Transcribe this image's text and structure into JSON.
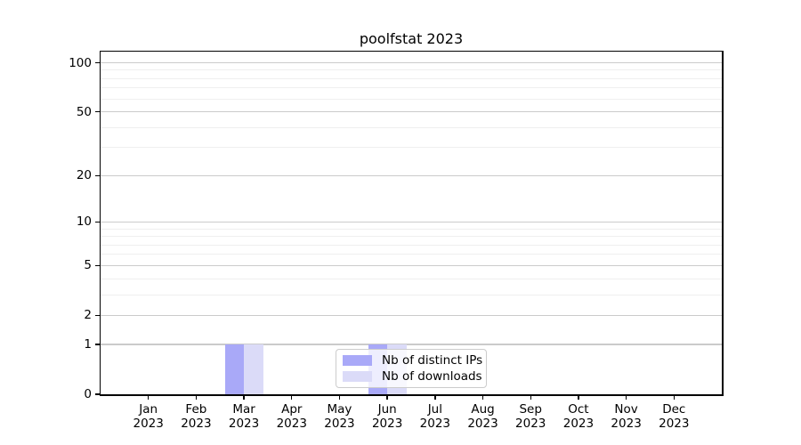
{
  "title": "poolfstat 2023",
  "chart_data": {
    "type": "bar",
    "title": "poolfstat 2023",
    "categories": [
      "Jan 2023",
      "Feb 2023",
      "Mar 2023",
      "Apr 2023",
      "May 2023",
      "Jun 2023",
      "Jul 2023",
      "Aug 2023",
      "Sep 2023",
      "Oct 2023",
      "Nov 2023",
      "Dec 2023"
    ],
    "series": [
      {
        "name": "Nb of distinct IPs",
        "color": "#a9a9f8",
        "values": [
          0,
          0,
          1,
          0,
          0,
          1,
          0,
          0,
          0,
          0,
          0,
          0
        ]
      },
      {
        "name": "Nb of downloads",
        "color": "#dbdbf8",
        "values": [
          0,
          0,
          1,
          0,
          0,
          1,
          0,
          0,
          0,
          0,
          0,
          0
        ]
      }
    ],
    "yscale": "log1p",
    "ylim": [
      0,
      117
    ],
    "y_major_ticks": [
      0,
      1,
      2,
      5,
      10,
      20,
      50,
      100
    ],
    "y_minor_ticks": [
      3,
      4,
      6,
      7,
      8,
      9,
      30,
      40,
      60,
      70,
      80,
      90
    ],
    "grid": true,
    "legend_position": "lower center"
  },
  "colors": {
    "major_grid": "#cbcbcb",
    "minor_grid": "#efefef",
    "spine": "#000000",
    "legend_border": "#cccccc",
    "background": "#ffffff"
  }
}
